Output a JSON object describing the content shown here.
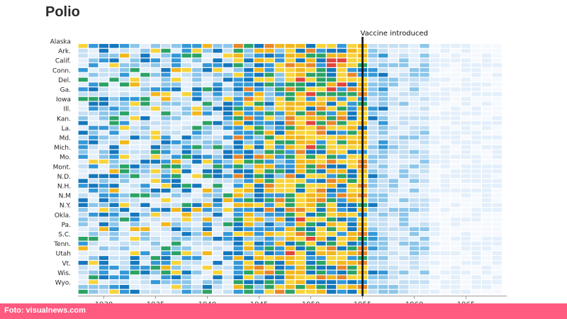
{
  "header": {
    "title": "Polio"
  },
  "footer": {
    "credit": "Foto: visualnews.com"
  },
  "colors": {
    "accent_bar": "#ff5a80",
    "scale": [
      "#f5f9fd",
      "#e3effa",
      "#c5dff3",
      "#8cc6ea",
      "#3498d8",
      "#1577bd",
      "#2ba365",
      "#f8d43a",
      "#f2b71d",
      "#e8862a",
      "#e2453c"
    ]
  },
  "chart_data": {
    "type": "heatmap",
    "title": "Polio",
    "xlabel": "",
    "ylabel": "",
    "x_range": [
      1928,
      1969
    ],
    "x_ticks": [
      "1930",
      "1935",
      "1940",
      "1945",
      "1950",
      "1955",
      "1960",
      "1965"
    ],
    "y_labels": [
      "Alaska",
      "Ark.",
      "Calif.",
      "Conn.",
      "Del.",
      "Ga.",
      "Iowa",
      "Ill.",
      "Kan.",
      "La.",
      "Md.",
      "Mich.",
      "Mo.",
      "Mont.",
      "N.D.",
      "N.H.",
      "N.M",
      "N.Y.",
      "Okla.",
      "Pa.",
      "S.C.",
      "Tenn.",
      "Utah",
      "Vt.",
      "Wis.",
      "Wyo."
    ],
    "intensity_scale": "0 = no cases, 10 = highest incidence",
    "annotation": {
      "label": "Vaccine introduced",
      "year": 1955
    },
    "grid": false,
    "legend": "none"
  }
}
